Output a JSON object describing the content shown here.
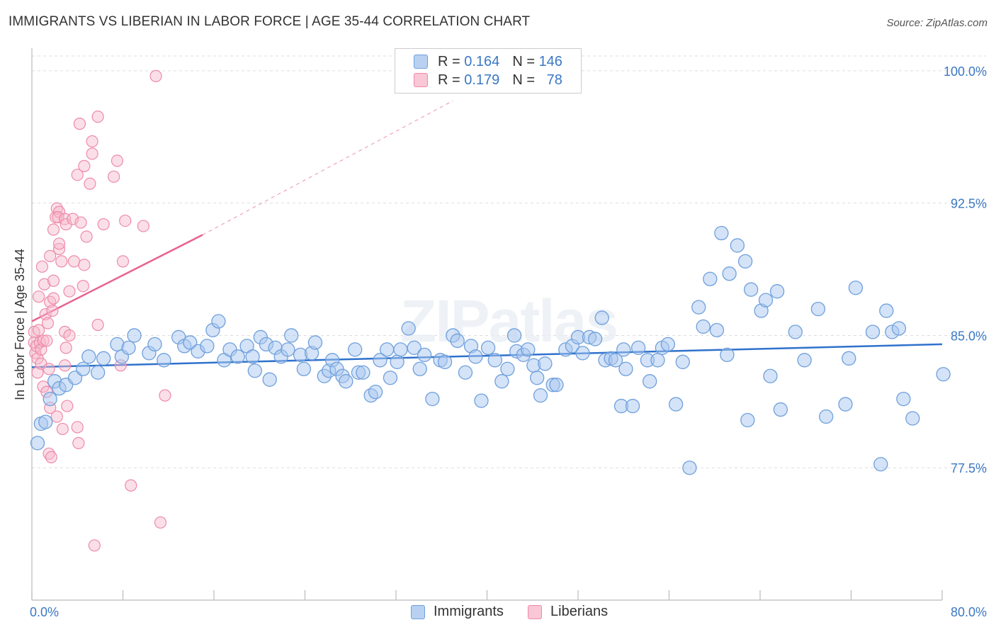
{
  "chart_data": {
    "type": "scatter",
    "title": "IMMIGRANTS VS LIBERIAN IN LABOR FORCE | AGE 35-44 CORRELATION CHART",
    "source": "Source: ZipAtlas.com",
    "watermark": "ZIPatlas",
    "xlabel": "",
    "ylabel": "In Labor Force | Age 35-44",
    "xlim": [
      0,
      80
    ],
    "ylim": [
      70,
      101
    ],
    "x_tick_labels": [
      "0.0%",
      "80.0%"
    ],
    "y_ticks": [
      100.0,
      92.5,
      85.0,
      77.5
    ],
    "y_tick_labels": [
      "100.0%",
      "92.5%",
      "85.0%",
      "77.5%"
    ],
    "grid": true,
    "legend_position": "top-center",
    "colors": {
      "immigrants_fill": "#a9c8ef",
      "immigrants_stroke": "#6fa0dc",
      "immigrants_line": "#2f72cc",
      "liberians_fill": "#f7b8cc",
      "liberians_stroke": "#ee8aa8",
      "liberians_line": "#e8628f",
      "value_text": "#3b78c4",
      "grid": "#dddddd"
    },
    "legend_stats": [
      {
        "r_label": "R =",
        "r_value": "0.164",
        "n_label": "N =",
        "n_value": "146"
      },
      {
        "r_label": "R =",
        "r_value": "0.179",
        "n_label": "N =",
        "n_value": "78"
      }
    ],
    "series": [
      {
        "name": "Immigrants",
        "trend": {
          "x0": 0,
          "y0": 83.2,
          "x1": 80,
          "y1": 84.5
        },
        "points": [
          [
            0.5,
            78.9
          ],
          [
            0.8,
            80
          ],
          [
            1.2,
            80.1
          ],
          [
            1.6,
            81.4
          ],
          [
            2,
            82.4
          ],
          [
            2.4,
            82
          ],
          [
            3,
            82.2
          ],
          [
            3.8,
            82.6
          ],
          [
            4.5,
            83.1
          ],
          [
            5,
            83.8
          ],
          [
            5.8,
            82.9
          ],
          [
            6.3,
            83.7
          ],
          [
            7.5,
            84.5
          ],
          [
            7.9,
            83.8
          ],
          [
            8.5,
            84.3
          ],
          [
            9,
            85
          ],
          [
            10.3,
            84
          ],
          [
            10.8,
            84.5
          ],
          [
            11.6,
            83.6
          ],
          [
            12.9,
            84.9
          ],
          [
            13.4,
            84.4
          ],
          [
            13.9,
            84.6
          ],
          [
            14.6,
            84.1
          ],
          [
            15.4,
            84.4
          ],
          [
            15.9,
            85.3
          ],
          [
            16.4,
            85.8
          ],
          [
            16.9,
            83.6
          ],
          [
            17.4,
            84.2
          ],
          [
            18.1,
            83.8
          ],
          [
            18.9,
            84.4
          ],
          [
            19.4,
            83.8
          ],
          [
            19.6,
            83
          ],
          [
            20.1,
            84.9
          ],
          [
            20.6,
            84.5
          ],
          [
            20.9,
            82.5
          ],
          [
            21.4,
            84.3
          ],
          [
            21.9,
            83.8
          ],
          [
            22.5,
            84.2
          ],
          [
            22.8,
            85
          ],
          [
            23.6,
            83.9
          ],
          [
            23.9,
            83.1
          ],
          [
            24.6,
            84
          ],
          [
            24.9,
            84.6
          ],
          [
            25.7,
            82.7
          ],
          [
            26.1,
            83
          ],
          [
            26.4,
            83.6
          ],
          [
            26.8,
            83.1
          ],
          [
            27.3,
            82.7
          ],
          [
            27.6,
            82.4
          ],
          [
            28.4,
            84.2
          ],
          [
            28.7,
            82.9
          ],
          [
            29.1,
            82.9
          ],
          [
            29.8,
            81.6
          ],
          [
            30.2,
            81.8
          ],
          [
            30.6,
            83.6
          ],
          [
            31.2,
            84.2
          ],
          [
            31.5,
            82.6
          ],
          [
            32.1,
            83.5
          ],
          [
            32.4,
            84.2
          ],
          [
            33.1,
            85.4
          ],
          [
            33.6,
            84.3
          ],
          [
            34.1,
            83.1
          ],
          [
            34.5,
            83.9
          ],
          [
            35.2,
            81.4
          ],
          [
            35.9,
            83.6
          ],
          [
            36.3,
            83.5
          ],
          [
            37,
            85
          ],
          [
            37.4,
            84.7
          ],
          [
            38.1,
            82.9
          ],
          [
            38.6,
            84.4
          ],
          [
            39,
            83.8
          ],
          [
            39.5,
            81.3
          ],
          [
            40.1,
            84.3
          ],
          [
            40.7,
            83.6
          ],
          [
            41.3,
            82.4
          ],
          [
            41.8,
            83.1
          ],
          [
            42.4,
            85
          ],
          [
            42.6,
            84.1
          ],
          [
            43.2,
            83.9
          ],
          [
            43.6,
            84.2
          ],
          [
            44.1,
            83.3
          ],
          [
            44.4,
            82.6
          ],
          [
            44.7,
            81.6
          ],
          [
            45.1,
            83.4
          ],
          [
            45.8,
            82.2
          ],
          [
            46.1,
            82.2
          ],
          [
            46.9,
            84.2
          ],
          [
            47.5,
            84.4
          ],
          [
            48,
            84.9
          ],
          [
            48.4,
            84
          ],
          [
            49,
            84.9
          ],
          [
            49.5,
            84.8
          ],
          [
            50.1,
            86
          ],
          [
            50.4,
            83.6
          ],
          [
            50.9,
            83.7
          ],
          [
            51.3,
            83.6
          ],
          [
            51.8,
            81
          ],
          [
            52,
            84.2
          ],
          [
            52.2,
            83.1
          ],
          [
            52.8,
            81
          ],
          [
            53.3,
            84.3
          ],
          [
            54.1,
            83.6
          ],
          [
            54.3,
            82.4
          ],
          [
            55,
            83.6
          ],
          [
            55.4,
            84.3
          ],
          [
            55.9,
            84.5
          ],
          [
            56.6,
            81.1
          ],
          [
            57.2,
            83.5
          ],
          [
            57.8,
            77.5
          ],
          [
            58.6,
            86.6
          ],
          [
            59,
            85.5
          ],
          [
            59.6,
            88.2
          ],
          [
            60.2,
            85.3
          ],
          [
            60.6,
            90.8
          ],
          [
            61.1,
            83.9
          ],
          [
            61.3,
            88.5
          ],
          [
            62,
            90.1
          ],
          [
            62.7,
            89.2
          ],
          [
            62.9,
            80.2
          ],
          [
            63.2,
            87.6
          ],
          [
            64.1,
            86.4
          ],
          [
            64.5,
            87
          ],
          [
            64.9,
            82.7
          ],
          [
            65.5,
            87.5
          ],
          [
            65.8,
            80.8
          ],
          [
            67.1,
            85.2
          ],
          [
            67.9,
            83.6
          ],
          [
            69.1,
            86.5
          ],
          [
            69.8,
            80.4
          ],
          [
            71.5,
            81.1
          ],
          [
            71.8,
            83.7
          ],
          [
            72.4,
            87.7
          ],
          [
            73.9,
            85.2
          ],
          [
            74.6,
            77.7
          ],
          [
            75.1,
            86.4
          ],
          [
            75.6,
            85.2
          ],
          [
            76.2,
            85.4
          ],
          [
            76.6,
            81.4
          ],
          [
            77.4,
            80.3
          ],
          [
            80.1,
            82.8
          ]
        ]
      },
      {
        "name": "Liberians",
        "trend": {
          "x0": 0,
          "y0": 85.8,
          "x1": 15,
          "y1": 90.7
        },
        "trend_dashed_to": {
          "x": 37,
          "y": 98.3
        },
        "points": [
          [
            0.2,
            85.2
          ],
          [
            0.2,
            84.6
          ],
          [
            0.3,
            84
          ],
          [
            0.4,
            84.4
          ],
          [
            0.5,
            83.7
          ],
          [
            0.5,
            82.9
          ],
          [
            0.6,
            87.2
          ],
          [
            0.6,
            85.3
          ],
          [
            0.7,
            84.6
          ],
          [
            0.8,
            84.2
          ],
          [
            0.8,
            83.4
          ],
          [
            0.9,
            88.9
          ],
          [
            1,
            84.7
          ],
          [
            1,
            82.1
          ],
          [
            1.1,
            87.9
          ],
          [
            1.2,
            86.2
          ],
          [
            1.3,
            81.8
          ],
          [
            1.3,
            84.7
          ],
          [
            1.4,
            85.7
          ],
          [
            1.5,
            83.1
          ],
          [
            1.5,
            78.3
          ],
          [
            1.6,
            86.9
          ],
          [
            1.6,
            80.9
          ],
          [
            1.6,
            89.5
          ],
          [
            1.7,
            78.1
          ],
          [
            1.8,
            86.4
          ],
          [
            1.9,
            87.1
          ],
          [
            1.9,
            88.1
          ],
          [
            1.9,
            91
          ],
          [
            2.1,
            91.7
          ],
          [
            2.2,
            92.2
          ],
          [
            2.2,
            80.4
          ],
          [
            2.4,
            92
          ],
          [
            2.3,
            91.7
          ],
          [
            2.4,
            89.9
          ],
          [
            2.4,
            90.2
          ],
          [
            2.6,
            89.2
          ],
          [
            2.7,
            79.7
          ],
          [
            2.9,
            91.6
          ],
          [
            3,
            91.3
          ],
          [
            2.9,
            85.2
          ],
          [
            2.9,
            83.3
          ],
          [
            3,
            84.3
          ],
          [
            3.1,
            81
          ],
          [
            3.3,
            85
          ],
          [
            3.3,
            87.5
          ],
          [
            3.6,
            91.6
          ],
          [
            3.7,
            89.2
          ],
          [
            4,
            94.1
          ],
          [
            4,
            79.8
          ],
          [
            4.1,
            78.9
          ],
          [
            4.2,
            97
          ],
          [
            4.3,
            91.4
          ],
          [
            4.5,
            87.8
          ],
          [
            4.6,
            94.6
          ],
          [
            4.6,
            89
          ],
          [
            4.8,
            90.6
          ],
          [
            5.1,
            93.6
          ],
          [
            5.3,
            95.3
          ],
          [
            5.3,
            96
          ],
          [
            5.8,
            85.6
          ],
          [
            5.8,
            97.4
          ],
          [
            6.3,
            91.3
          ],
          [
            7.2,
            94
          ],
          [
            7.5,
            94.9
          ],
          [
            7.8,
            83.3
          ],
          [
            8,
            89.2
          ],
          [
            8.2,
            91.5
          ],
          [
            8.7,
            76.5
          ],
          [
            9.8,
            91.2
          ],
          [
            10.9,
            99.7
          ],
          [
            11.3,
            74.4
          ],
          [
            11.7,
            81.6
          ],
          [
            5.5,
            73.1
          ]
        ]
      }
    ]
  }
}
